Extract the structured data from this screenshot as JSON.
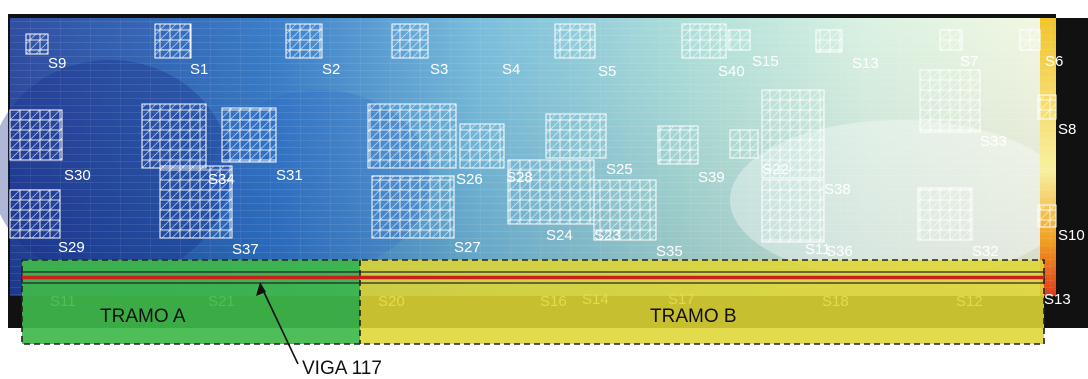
{
  "sensor_labels": [
    "S9",
    "S1",
    "S2",
    "S3",
    "S4",
    "S5",
    "S40",
    "S15",
    "S13",
    "S7",
    "S6",
    "S8",
    "S33",
    "S30",
    "S34",
    "S31",
    "S26",
    "S28",
    "S25",
    "S39",
    "S22",
    "S38",
    "S29",
    "S37",
    "S27",
    "S24",
    "S23",
    "S35",
    "S11",
    "S36",
    "S32",
    "S10",
    "S11",
    "S21",
    "S20",
    "S16",
    "S14",
    "S17",
    "S18",
    "S12",
    "S13"
  ],
  "zones": {
    "tramo_a": "TRAMO A",
    "tramo_b": "TRAMO B"
  },
  "callout": "VIGA 117",
  "colors": {
    "tramo_a_fill": "#3fb84a",
    "tramo_b_fill": "#e8e04a",
    "beam_line": "#c8211c",
    "background": "#ffffff"
  }
}
